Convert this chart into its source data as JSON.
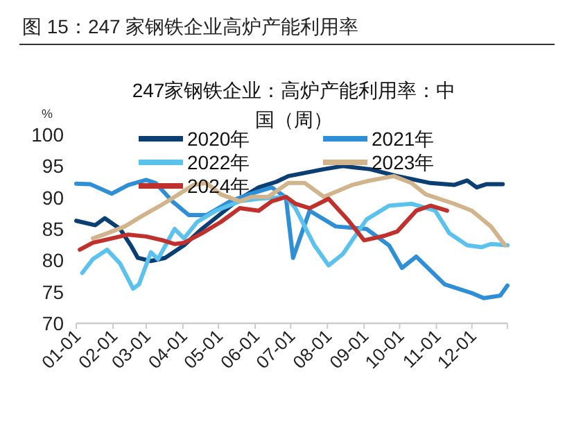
{
  "chart_data": {
    "type": "line",
    "title": "图 15：247 家钢铁企业高炉产能利用率",
    "subtitle": "247家钢铁企业：高炉产能利用率：中国（周）",
    "ylabel": "%",
    "xlim": [
      "--01-01",
      "--12-31"
    ],
    "xticks": [
      {
        "value": "--01-01",
        "label": "01-01"
      },
      {
        "value": "--02-01",
        "label": "02-01"
      },
      {
        "value": "--03-01",
        "label": "03-01"
      },
      {
        "value": "--04-01",
        "label": "04-01"
      },
      {
        "value": "--05-01",
        "label": "05-01"
      },
      {
        "value": "--06-01",
        "label": "06-01"
      },
      {
        "value": "--07-01",
        "label": "07-01"
      },
      {
        "value": "--08-01",
        "label": "08-01"
      },
      {
        "value": "--09-01",
        "label": "09-01"
      },
      {
        "value": "--10-01",
        "label": "10-01"
      },
      {
        "value": "--11-01",
        "label": "11-01"
      },
      {
        "value": "--12-01",
        "label": "12-01"
      }
    ],
    "ylim": [
      70,
      100
    ],
    "yticks": [
      70,
      75,
      80,
      85,
      90,
      95,
      100
    ],
    "grid": false,
    "legend": "top",
    "marker": "none",
    "line_style": "solid",
    "series": [
      {
        "name": "2020年",
        "color": "#0b3f73",
        "x": [
          "--01-01",
          "--01-17",
          "--01-25",
          "--02-07",
          "--02-16",
          "--02-22",
          "--03-05",
          "--03-17",
          "--04-02",
          "--04-17",
          "--05-03",
          "--05-19",
          "--06-04",
          "--06-19",
          "--06-29",
          "--07-29",
          "--08-14",
          "--09-06",
          "--09-29",
          "--10-27",
          "--11-16",
          "--11-27",
          "--12-05",
          "--12-13",
          "--12-27"
        ],
        "values": [
          86.3,
          85.6,
          86.7,
          85,
          82.4,
          80.4,
          79.9,
          80.4,
          82.4,
          85,
          87.4,
          89.8,
          91.6,
          92.5,
          93.4,
          94.5,
          95,
          94.5,
          93.4,
          92.3,
          92,
          92.7,
          91.6,
          92.1,
          92.1
        ]
      },
      {
        "name": "2021年",
        "color": "#2e8fd6",
        "x": [
          "--01-01",
          "--01-13",
          "--01-31",
          "--02-14",
          "--03-01",
          "--03-09",
          "--03-23",
          "--04-06",
          "--04-21",
          "--05-11",
          "--05-27",
          "--06-15",
          "--06-27",
          "--07-03",
          "--07-17",
          "--08-08",
          "--09-03",
          "--09-22",
          "--10-03",
          "--10-15",
          "--11-08",
          "--12-01",
          "--12-11",
          "--12-25",
          "--12-31"
        ],
        "values": [
          92.2,
          92.1,
          90.6,
          92,
          92.8,
          92.3,
          89.4,
          87.2,
          87.2,
          89.4,
          90.5,
          91.6,
          90,
          80.4,
          87.9,
          85.4,
          85,
          82.4,
          78.8,
          80.6,
          76.2,
          74.8,
          74,
          74.4,
          76
        ]
      },
      {
        "name": "2022年",
        "color": "#5bc2ee",
        "x": [
          "--01-06",
          "--01-15",
          "--01-27",
          "--02-07",
          "--02-18",
          "--02-23",
          "--03-05",
          "--03-11",
          "--03-25",
          "--04-02",
          "--04-13",
          "--04-29",
          "--05-19",
          "--06-04",
          "--06-27",
          "--07-05",
          "--07-21",
          "--08-02",
          "--08-14",
          "--09-03",
          "--09-22",
          "--10-11",
          "--10-31",
          "--11-12",
          "--11-27",
          "--12-09",
          "--12-17",
          "--12-31"
        ],
        "values": [
          78,
          80.2,
          81.7,
          79.5,
          75.5,
          76.2,
          81.3,
          80.2,
          85,
          83.5,
          86.1,
          87.9,
          89.4,
          89.8,
          90.1,
          88.3,
          82.4,
          79.2,
          81,
          86.5,
          88.7,
          89,
          87.9,
          84.3,
          82.4,
          82.1,
          82.6,
          82.4
        ]
      },
      {
        "name": "2023年",
        "color": "#d2b48c",
        "x": [
          "--01-15",
          "--01-27",
          "--02-11",
          "--02-25",
          "--03-13",
          "--03-25",
          "--04-10",
          "--04-21",
          "--05-03",
          "--05-19",
          "--05-29",
          "--06-12",
          "--06-29",
          "--07-13",
          "--07-29",
          "--08-22",
          "--09-06",
          "--09-26",
          "--10-11",
          "--10-23",
          "--11-16",
          "--12-01",
          "--12-17",
          "--12-29"
        ],
        "values": [
          83.5,
          84.3,
          85.4,
          87,
          88.7,
          90.1,
          92,
          92.3,
          90.5,
          89.4,
          90.1,
          90.1,
          92.3,
          92.3,
          90.1,
          92,
          92.7,
          93.4,
          92.3,
          90.5,
          89,
          87.9,
          85.4,
          82.4
        ]
      },
      {
        "name": "2024年",
        "color": "#c0302c",
        "x": [
          "--01-04",
          "--01-15",
          "--01-31",
          "--02-14",
          "--03-01",
          "--03-15",
          "--03-25",
          "--04-02",
          "--04-17",
          "--05-03",
          "--05-19",
          "--06-04",
          "--06-15",
          "--06-27",
          "--07-05",
          "--07-17",
          "--08-02",
          "--08-18",
          "--09-01",
          "--09-18",
          "--09-29",
          "--10-15",
          "--10-27",
          "--11-10"
        ],
        "values": [
          81.7,
          82.8,
          83.5,
          84.1,
          83.8,
          83.2,
          82.6,
          82.8,
          84.3,
          86.1,
          88.3,
          87.9,
          89.4,
          90.1,
          89,
          88.3,
          89.8,
          86.5,
          83.2,
          83.9,
          84.6,
          87.9,
          88.7,
          87.9
        ]
      }
    ]
  }
}
